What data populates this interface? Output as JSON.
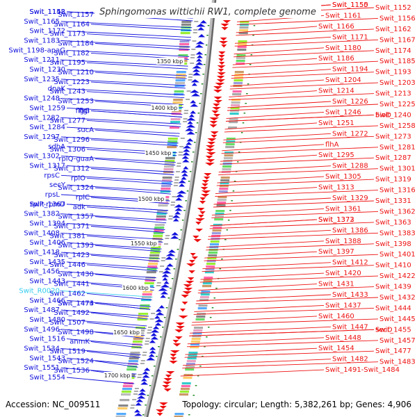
{
  "title": "Sphingomonas wittichii RW1, complete genome",
  "accession": "Accession: NC_009511",
  "topology": "Topology: circular; Length: 5,382,261 bp; Genes: 4,906",
  "colors": {
    "forward": "#1010dd",
    "reverse": "#ee1111",
    "highlight": "#33ccee",
    "backbone": "#777777",
    "tick_dot": "#228822"
  },
  "ticks": [
    "1350 kbp",
    "1400 kbp",
    "1450 kbp",
    "1500 kbp",
    "1550 kbp",
    "1600 kbp",
    "1650 kbp",
    "1700 kbp"
  ],
  "left_labels": [
    "Swit_1142",
    "Swit_1157",
    "Swit_1158",
    "Swit_1164",
    "Swit_1165",
    "Swit_1173",
    "Swit_1172",
    "Swit_1184",
    "Swit_1183",
    "Swit_1182",
    "Swit_1198-apaG",
    "Swit_1195",
    "Swit_1211",
    "Swit_1210",
    "Swit_1230",
    "Swit_1223",
    "Swit_1235",
    "Swit_1243",
    "dnaK",
    "Swit_1253",
    "Swit_1248",
    "flgI",
    "Swit_1259",
    "flgG",
    "Swit_1282",
    "Swit_1277",
    "Swit_1284",
    "sucA",
    "Swit_1297",
    "Swit_1296",
    "sdhA",
    "Swit_1306",
    "Swit_1302",
    "rplQ-guaA",
    "Swit_1317",
    "Swit_1312",
    "rpsC",
    "rplO",
    "secY",
    "Swit_1324",
    "rpsL",
    "rplC",
    "rplP-rpmD",
    "adk",
    "Swit_1367",
    "Swit_1357",
    "Swit_1382",
    "Swit_1371",
    "Swit_1394",
    "Swit_1381",
    "Swit_1408",
    "Swit_1393",
    "Swit_1406",
    "Swit_1423",
    "Swit_1418",
    "Swit_1446",
    "Swit_1435",
    "Swit_1430",
    "Swit_1456",
    "Swit_1441",
    "Swit_1443",
    "Swit_1462",
    "Swit_R0020",
    "Swit_1474",
    "Swit_1466",
    "Swit_1473",
    "Swit_1487",
    "Swit_1492",
    "Swit_1480",
    "Swit_1507",
    "Swit_1496",
    "Swit_1498",
    "Swit_1516",
    "anmK",
    "Swit_1534",
    "Swit_1519",
    "Swit_1543",
    "Swit_1524",
    "Swit_1551",
    "Swit_1536",
    "Swit_1554"
  ],
  "right_labels": [
    "Swit_1150",
    "Swit_1152",
    "Swit_1155",
    "Swit_1156",
    "Swit_1161",
    "Swit_1162",
    "Swit_1166",
    "Swit_1167",
    "Swit_1171",
    "Swit_1174",
    "Swit_1180",
    "Swit_1185",
    "Swit_1186",
    "Swit_1193",
    "Swit_1194",
    "Swit_1203",
    "Swit_1204",
    "Swit_1213",
    "Swit_1214",
    "Swit_1225",
    "Swit_1226",
    "Swit_1240",
    "Swit_1246",
    "bioD",
    "Swit_1251",
    "Swit_1258",
    "Swit_1272",
    "Swit_1273",
    "flhA",
    "Swit_1281",
    "Swit_1295",
    "Swit_1287",
    "Swit_1288",
    "Swit_1301",
    "Swit_1305",
    "Swit_1319",
    "Swit_1313",
    "Swit_1316",
    "Swit_1329",
    "Swit_1331",
    "Swit_1361",
    "Swit_1362",
    "Swit_1373",
    "Swit_1363",
    "Swit_1372",
    "Swit_1383",
    "Swit_1386",
    "Swit_1398",
    "Swit_1388",
    "Swit_1401",
    "Swit_1397",
    "Swit_1410",
    "Swit_1412",
    "Swit_1422",
    "Swit_1420",
    "Swit_1439",
    "Swit_1431",
    "Swit_1432",
    "Swit_1433",
    "Swit_1444",
    "Swit_1437",
    "Swit_1445",
    "Swit_1460",
    "secD",
    "Swit_1447",
    "Swit_1455",
    "Swit_1448",
    "Swit_1457",
    "Swit_1454",
    "Swit_1477",
    "Swit_1482",
    "Swit_1483",
    "Swit_1491-Swit_1484"
  ]
}
